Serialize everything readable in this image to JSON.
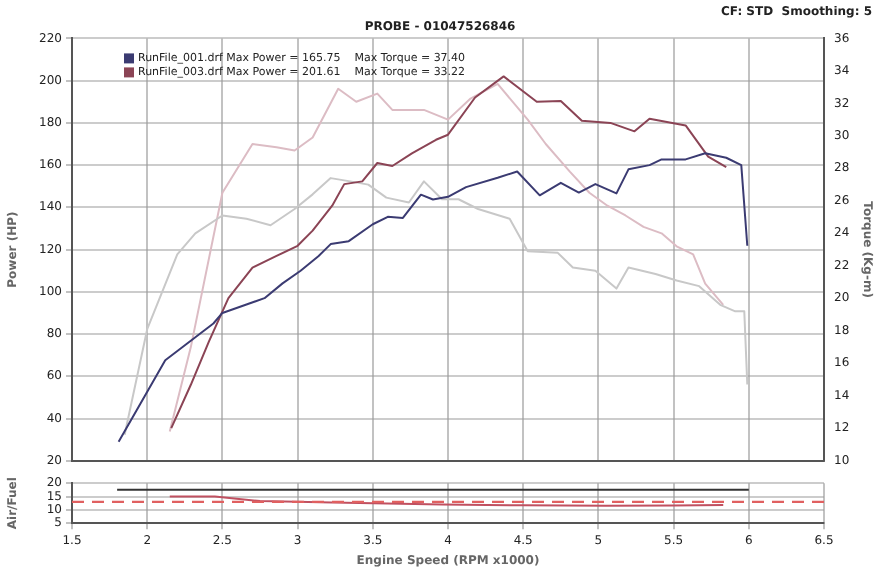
{
  "chart_data": [
    {
      "type": "line",
      "subtitle": "PROBE - 01047526846",
      "annotations": [
        "CF: STD  Smoothing: 5"
      ],
      "ylabel": "Power (HP)",
      "y2label": "Torque (Kg-m)",
      "xlim": [
        1.5,
        6.5
      ],
      "xticks": [
        1.5,
        2,
        2.5,
        3,
        3.5,
        4,
        4.5,
        5,
        5.5,
        6,
        6.5
      ],
      "ylim": [
        20,
        220
      ],
      "yticks": [
        20,
        40,
        60,
        80,
        100,
        120,
        140,
        160,
        180,
        200,
        220
      ],
      "y2lim": [
        10,
        36
      ],
      "y2ticks": [
        10,
        12,
        14,
        16,
        18,
        20,
        22,
        24,
        26,
        28,
        30,
        32,
        34,
        36
      ],
      "grid": true,
      "legend": "top left",
      "tick_labels": "y",
      "line_style": "solid",
      "marker": "none",
      "series": [
        {
          "name": "RunFile_001.drf Max Power = 165.75    Max Torque = 37.40",
          "color": "#3b3b72",
          "x": [
            1.81,
            2.12,
            2.44,
            2.5,
            2.66,
            2.78,
            2.9,
            3.02,
            3.14,
            3.22,
            3.34,
            3.5,
            3.6,
            3.7,
            3.82,
            3.9,
            4.0,
            4.12,
            4.33,
            4.46,
            4.61,
            4.75,
            4.87,
            4.98,
            5.12,
            5.2,
            5.34,
            5.42,
            5.58,
            5.71,
            5.85,
            5.95,
            5.99
          ],
          "values": [
            29,
            67.6,
            85,
            90,
            94,
            97,
            104,
            110,
            117,
            122.6,
            124,
            132,
            135.5,
            135,
            146,
            143.7,
            145,
            149.6,
            154,
            157,
            145.7,
            151.6,
            147,
            151,
            146.6,
            158,
            160,
            162.7,
            162.7,
            165.6,
            163.5,
            160,
            121.8
          ]
        },
        {
          "name": "RunFile_003.drf Max Power = 201.61    Max Torque = 33.22",
          "color": "#8b4455",
          "x": [
            2.16,
            2.29,
            2.41,
            2.54,
            2.7,
            2.86,
            3.0,
            3.1,
            3.23,
            3.31,
            3.43,
            3.53,
            3.63,
            3.76,
            3.92,
            4.0,
            4.18,
            4.37,
            4.59,
            4.75,
            4.89,
            5.08,
            5.24,
            5.34,
            5.58,
            5.73,
            5.85
          ],
          "values": [
            35.5,
            56,
            76.4,
            97,
            111.5,
            117,
            121.8,
            129,
            140.8,
            151,
            152.3,
            161,
            159.6,
            165.6,
            172,
            174.4,
            192,
            202,
            190,
            190.4,
            181,
            180,
            176,
            182,
            178.8,
            164,
            159
          ]
        },
        {
          "color": "#c8c8c8",
          "axis": "y2",
          "x": [
            1.85,
            2.0,
            2.2,
            2.32,
            2.5,
            2.66,
            2.82,
            2.98,
            3.1,
            3.22,
            3.35,
            3.47,
            3.59,
            3.74,
            3.84,
            3.96,
            4.07,
            4.2,
            4.41,
            4.53,
            4.73,
            4.83,
            4.98,
            5.12,
            5.2,
            5.38,
            5.52,
            5.67,
            5.81,
            5.91,
            5.97,
            5.99
          ],
          "values": [
            11.6,
            18.1,
            22.7,
            24,
            25.1,
            24.9,
            24.5,
            25.5,
            26.4,
            27.4,
            27.2,
            27,
            26.2,
            25.9,
            27.2,
            26.1,
            26.1,
            25.5,
            24.9,
            22.9,
            22.8,
            21.9,
            21.7,
            20.6,
            21.9,
            21.5,
            21.1,
            20.75,
            19.6,
            19.2,
            19.2,
            14.7
          ]
        },
        {
          "color": "#dcbcc4",
          "axis": "y2",
          "x": [
            2.15,
            2.29,
            2.5,
            2.7,
            2.86,
            2.98,
            3.1,
            3.27,
            3.39,
            3.53,
            3.63,
            3.84,
            4.0,
            4.15,
            4.33,
            4.53,
            4.65,
            4.81,
            4.94,
            5.06,
            5.18,
            5.3,
            5.42,
            5.52,
            5.63,
            5.71,
            5.83
          ],
          "values": [
            11.8,
            17,
            26.5,
            29.5,
            29.3,
            29.1,
            29.9,
            32.9,
            32.1,
            32.6,
            31.6,
            31.6,
            31,
            32.3,
            33.2,
            31,
            29.5,
            27.8,
            26.5,
            25.7,
            25.1,
            24.4,
            24,
            23.2,
            22.7,
            20.9,
            19.6
          ]
        }
      ]
    },
    {
      "type": "line",
      "xlabel": "Engine Speed (RPM x1000)",
      "ylabel": "Air/Fuel",
      "xlim": [
        1.5,
        6.5
      ],
      "xticks": [
        1.5,
        2,
        2.5,
        3,
        3.5,
        4,
        4.5,
        5,
        5.5,
        6,
        6.5
      ],
      "ylim": [
        5,
        20
      ],
      "yticks": [
        5,
        10,
        15,
        20
      ],
      "grid": true,
      "line_style": "solid",
      "marker": "none",
      "ref_lines": [
        {
          "axis": "y",
          "value": 13,
          "color": "#e06060",
          "line_style": "dashed"
        }
      ],
      "series": [
        {
          "color": "#333333",
          "x": [
            1.8,
            6.0
          ],
          "values": [
            17.5,
            17.5
          ]
        },
        {
          "color": "#c05060",
          "x": [
            2.15,
            2.45,
            2.75,
            3.23,
            3.96,
            4.5,
            5.05,
            5.5,
            5.83
          ],
          "values": [
            15,
            15,
            13.3,
            12.8,
            12,
            11.7,
            11.5,
            11.6,
            11.8
          ]
        }
      ]
    }
  ]
}
